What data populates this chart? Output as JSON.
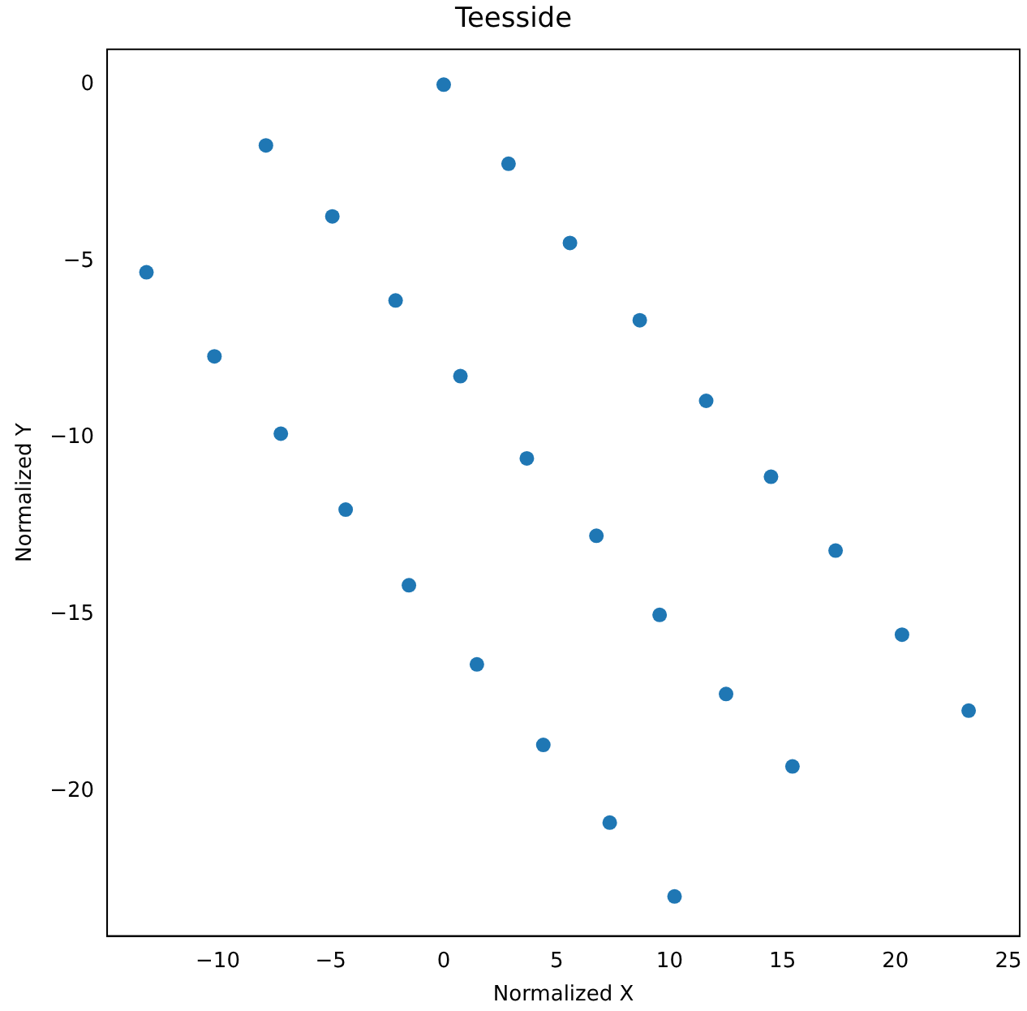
{
  "chart_data": {
    "type": "scatter",
    "title": "Teesside",
    "xlabel": "Normalized X",
    "ylabel": "Normalized Y",
    "x": [
      0,
      2.87,
      5.59,
      8.68,
      11.62,
      14.49,
      17.35,
      20.29,
      23.24,
      -7.87,
      -4.93,
      -2.13,
      0.74,
      3.68,
      6.76,
      9.56,
      12.5,
      15.44,
      -13.16,
      -10.15,
      -7.21,
      -4.34,
      -1.54,
      1.47,
      4.41,
      7.35,
      10.22
    ],
    "series": [
      {
        "color": "#1f77b4",
        "values": [
          0,
          -2.24,
          -4.48,
          -6.67,
          -8.95,
          -11.1,
          -13.19,
          -15.57,
          -17.72,
          -1.72,
          -3.73,
          -6.11,
          -8.25,
          -10.58,
          -12.77,
          -15.01,
          -17.25,
          -19.3,
          -5.31,
          -7.69,
          -9.88,
          -12.03,
          -14.17,
          -16.41,
          -18.69,
          -20.89,
          -22.98
        ]
      }
    ],
    "xlim": [
      -14.9,
      25.5
    ],
    "ylim": [
      -24.1,
      1.0
    ],
    "xticks": [
      {
        "value": -10,
        "label": "−10"
      },
      {
        "value": -5,
        "label": "−5"
      },
      0,
      5,
      10,
      15,
      20,
      25
    ],
    "yticks": [
      {
        "value": -20,
        "label": "−20"
      },
      {
        "value": -15,
        "label": "−15"
      },
      {
        "value": -10,
        "label": "−10"
      },
      {
        "value": -5,
        "label": "−5"
      },
      0
    ],
    "grid": false,
    "legend": false,
    "marker": "circle"
  }
}
